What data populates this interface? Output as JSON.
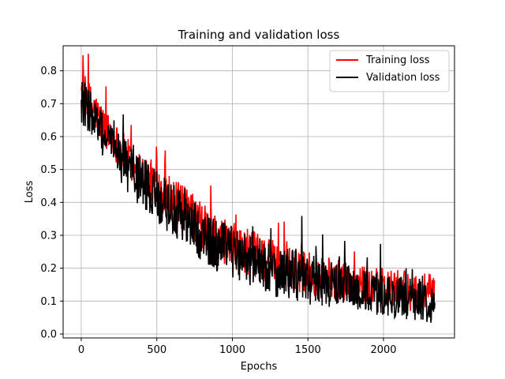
{
  "chart_data": {
    "type": "line",
    "title": "Training and validation loss",
    "xlabel": "Epochs",
    "ylabel": "Loss",
    "xlim": [
      -120,
      2470
    ],
    "ylim": [
      -0.012,
      0.876
    ],
    "xticks": [
      0,
      500,
      1000,
      1500,
      2000
    ],
    "yticks": [
      0.0,
      0.1,
      0.2,
      0.3,
      0.4,
      0.5,
      0.6,
      0.7,
      0.8
    ],
    "grid": true,
    "legend_position": "top-right",
    "series": [
      {
        "name": "Training loss",
        "color": "#ff0000",
        "x": [
          0,
          50,
          100,
          150,
          200,
          250,
          300,
          350,
          400,
          450,
          500,
          550,
          600,
          650,
          700,
          750,
          800,
          850,
          900,
          950,
          1000,
          1050,
          1100,
          1150,
          1200,
          1250,
          1300,
          1350,
          1400,
          1450,
          1500,
          1550,
          1600,
          1650,
          1700,
          1750,
          1800,
          1850,
          1900,
          1950,
          2000,
          2050,
          2100,
          2150,
          2200,
          2250,
          2300,
          2340
        ],
        "mean": [
          0.74,
          0.71,
          0.67,
          0.63,
          0.6,
          0.57,
          0.54,
          0.51,
          0.49,
          0.47,
          0.45,
          0.43,
          0.41,
          0.39,
          0.37,
          0.35,
          0.33,
          0.31,
          0.29,
          0.28,
          0.27,
          0.26,
          0.25,
          0.24,
          0.23,
          0.22,
          0.21,
          0.205,
          0.2,
          0.19,
          0.185,
          0.18,
          0.175,
          0.17,
          0.165,
          0.16,
          0.155,
          0.15,
          0.145,
          0.14,
          0.14,
          0.135,
          0.135,
          0.13,
          0.13,
          0.125,
          0.125,
          0.12
        ],
        "spread": [
          0.06,
          0.06,
          0.06,
          0.06,
          0.06,
          0.06,
          0.06,
          0.06,
          0.065,
          0.065,
          0.07,
          0.07,
          0.07,
          0.07,
          0.07,
          0.07,
          0.07,
          0.07,
          0.07,
          0.07,
          0.07,
          0.07,
          0.07,
          0.07,
          0.07,
          0.07,
          0.07,
          0.07,
          0.07,
          0.065,
          0.065,
          0.065,
          0.065,
          0.065,
          0.06,
          0.06,
          0.06,
          0.06,
          0.06,
          0.06,
          0.06,
          0.06,
          0.06,
          0.06,
          0.06,
          0.06,
          0.06,
          0.05
        ]
      },
      {
        "name": "Validation loss",
        "color": "#000000",
        "x": [
          0,
          50,
          100,
          150,
          200,
          250,
          300,
          350,
          400,
          450,
          500,
          550,
          600,
          650,
          700,
          750,
          800,
          850,
          900,
          950,
          1000,
          1050,
          1100,
          1150,
          1200,
          1250,
          1300,
          1350,
          1400,
          1450,
          1500,
          1550,
          1600,
          1650,
          1700,
          1750,
          1800,
          1850,
          1900,
          1950,
          2000,
          2050,
          2100,
          2150,
          2200,
          2250,
          2300,
          2340
        ],
        "mean": [
          0.71,
          0.68,
          0.64,
          0.6,
          0.57,
          0.54,
          0.51,
          0.48,
          0.46,
          0.44,
          0.42,
          0.4,
          0.38,
          0.36,
          0.34,
          0.32,
          0.3,
          0.28,
          0.27,
          0.26,
          0.25,
          0.24,
          0.23,
          0.22,
          0.21,
          0.2,
          0.19,
          0.185,
          0.18,
          0.17,
          0.165,
          0.16,
          0.155,
          0.15,
          0.145,
          0.14,
          0.135,
          0.13,
          0.125,
          0.12,
          0.12,
          0.115,
          0.11,
          0.11,
          0.105,
          0.105,
          0.1,
          0.09
        ],
        "spread": [
          0.07,
          0.07,
          0.07,
          0.07,
          0.075,
          0.075,
          0.075,
          0.08,
          0.08,
          0.08,
          0.08,
          0.08,
          0.08,
          0.08,
          0.08,
          0.08,
          0.08,
          0.08,
          0.08,
          0.08,
          0.08,
          0.08,
          0.08,
          0.08,
          0.08,
          0.08,
          0.08,
          0.08,
          0.08,
          0.075,
          0.075,
          0.075,
          0.075,
          0.07,
          0.07,
          0.07,
          0.07,
          0.07,
          0.065,
          0.065,
          0.065,
          0.065,
          0.065,
          0.065,
          0.065,
          0.065,
          0.065,
          0.06
        ]
      }
    ]
  }
}
